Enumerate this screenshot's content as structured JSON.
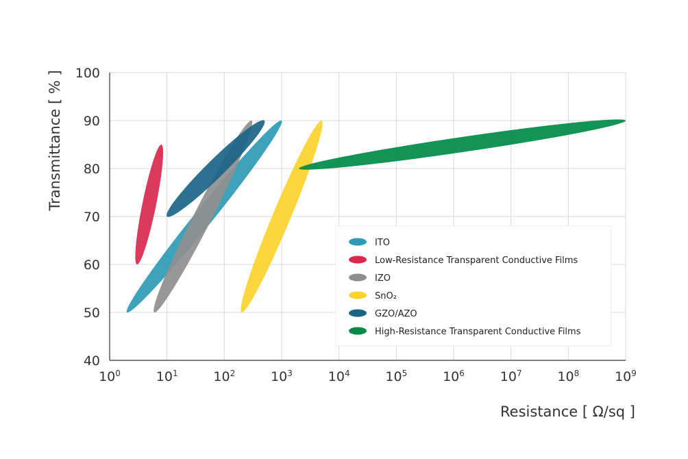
{
  "chart_data": {
    "type": "scatter",
    "title": "",
    "xlabel": "Resistance [ Ω/sq ]",
    "ylabel": "Transmittance [ % ]",
    "xscale": "log",
    "xlim": [
      1,
      1000000000
    ],
    "ylim": [
      40,
      100
    ],
    "grid": true,
    "legend_position": "bottom-right",
    "x_ticks": [
      {
        "base": "10",
        "exp": "0"
      },
      {
        "base": "10",
        "exp": "1"
      },
      {
        "base": "10",
        "exp": "2"
      },
      {
        "base": "10",
        "exp": "3"
      },
      {
        "base": "10",
        "exp": "4"
      },
      {
        "base": "10",
        "exp": "5"
      },
      {
        "base": "10",
        "exp": "6"
      },
      {
        "base": "10",
        "exp": "7"
      },
      {
        "base": "10",
        "exp": "8"
      },
      {
        "base": "10",
        "exp": "9"
      }
    ],
    "y_ticks": [
      "40",
      "50",
      "60",
      "70",
      "80",
      "90",
      "100"
    ],
    "series": [
      {
        "name": "ITO",
        "color": "#2e9bb4",
        "range_start": {
          "x": 2,
          "y": 50
        },
        "range_end": {
          "x": 1000,
          "y": 90
        }
      },
      {
        "name": "Low-Resistance Transparent Conductive Films",
        "color": "#d9294f",
        "range_start": {
          "x": 3,
          "y": 60
        },
        "range_end": {
          "x": 8,
          "y": 85
        }
      },
      {
        "name": "IZO",
        "color": "#8f8f8f",
        "range_start": {
          "x": 6,
          "y": 50
        },
        "range_end": {
          "x": 300,
          "y": 90
        }
      },
      {
        "name": "SnO₂",
        "color": "#fbd32c",
        "range_start": {
          "x": 200,
          "y": 50
        },
        "range_end": {
          "x": 5000,
          "y": 90
        }
      },
      {
        "name": "GZO/AZO",
        "color": "#1b6486",
        "range_start": {
          "x": 10,
          "y": 70
        },
        "range_end": {
          "x": 500,
          "y": 90
        }
      },
      {
        "name": "High-Resistance Transparent Conductive Films",
        "color": "#008a48",
        "range_start": {
          "x": 2000,
          "y": 80
        },
        "range_end": {
          "x": 1000000000,
          "y": 90
        }
      }
    ]
  }
}
